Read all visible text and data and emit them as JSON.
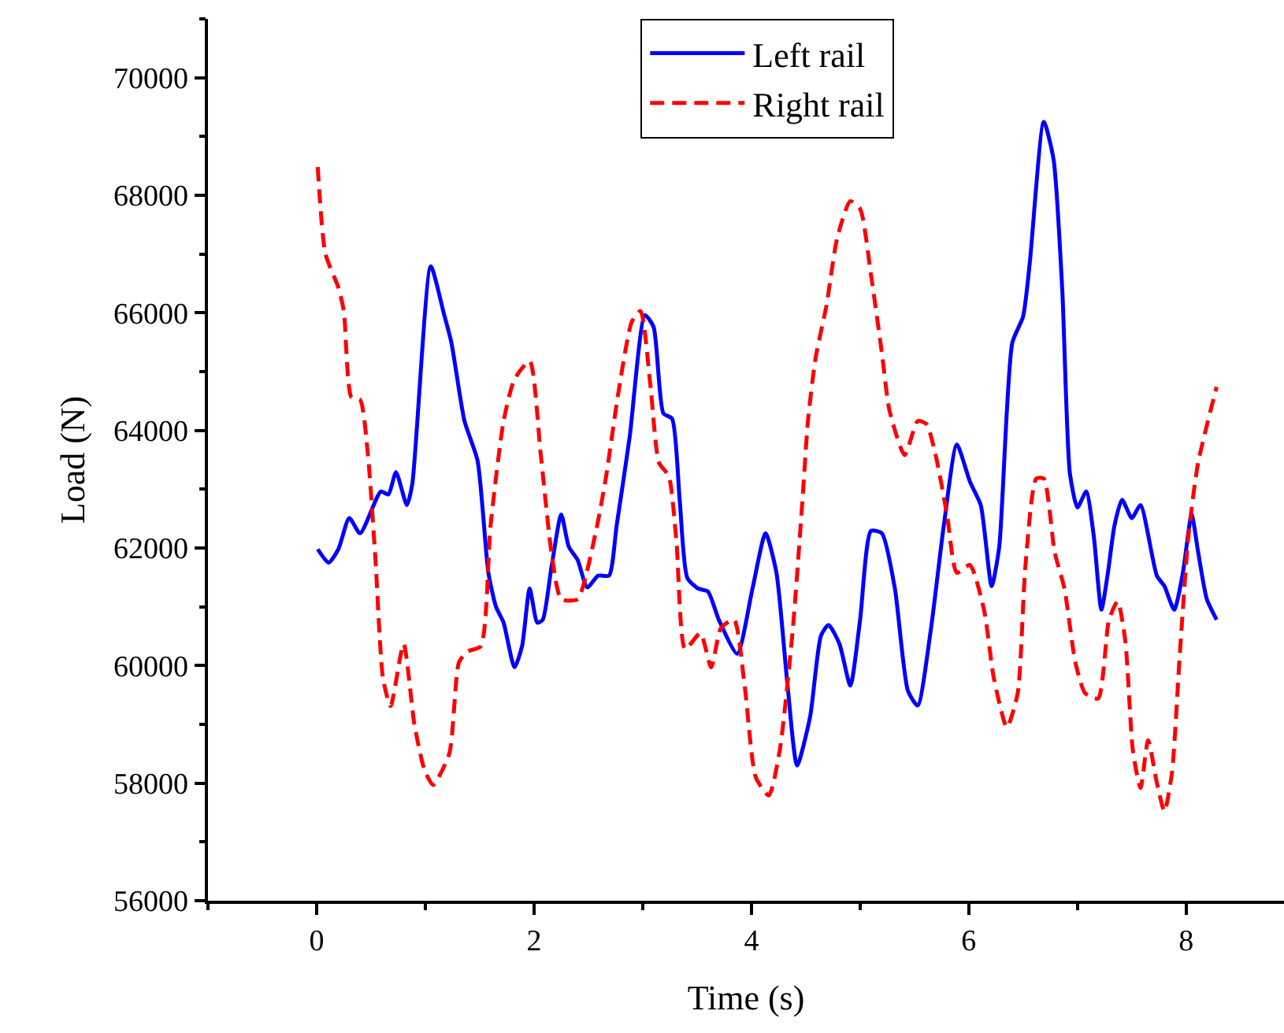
{
  "chart_data": {
    "type": "line",
    "xlabel": "Time (s)",
    "ylabel": "Load (N)",
    "xlim": [
      -1,
      8.9
    ],
    "xticks": [
      0,
      2,
      4,
      6,
      8
    ],
    "ylim": [
      56000,
      71000
    ],
    "yticks": [
      56000,
      58000,
      60000,
      62000,
      64000,
      66000,
      68000,
      70000
    ],
    "legend": "top",
    "marker": "none",
    "series": [
      {
        "name": "Left rail",
        "color": "#0000ff",
        "line_style": "solid",
        "x": [
          0.01,
          0.11,
          0.2,
          0.3,
          0.4,
          0.59,
          0.66,
          0.73,
          0.83,
          0.88,
          1.05,
          1.17,
          1.24,
          1.36,
          1.48,
          1.58,
          1.65,
          1.72,
          1.82,
          1.89,
          1.96,
          2.03,
          2.08,
          2.16,
          2.25,
          2.32,
          2.4,
          2.49,
          2.59,
          2.69,
          2.76,
          2.88,
          3.02,
          3.1,
          3.19,
          3.27,
          3.34,
          3.41,
          3.51,
          3.6,
          3.7,
          3.87,
          4.01,
          4.13,
          4.23,
          4.33,
          4.42,
          4.54,
          4.64,
          4.71,
          4.81,
          4.91,
          5.0,
          5.1,
          5.2,
          5.32,
          5.44,
          5.53,
          5.65,
          5.77,
          5.89,
          6.01,
          6.11,
          6.21,
          6.28,
          6.4,
          6.5,
          6.56,
          6.69,
          6.78,
          6.86,
          6.93,
          7.0,
          7.08,
          7.15,
          7.22,
          7.28,
          7.34,
          7.41,
          7.5,
          7.58,
          7.73,
          7.8,
          7.89,
          7.97,
          8.05,
          8.11,
          8.19,
          8.28
        ],
        "values": [
          61980,
          61750,
          61980,
          62510,
          62250,
          62960,
          62910,
          63290,
          62730,
          63090,
          66790,
          65990,
          65490,
          64160,
          63490,
          61580,
          61000,
          60730,
          59970,
          60330,
          61310,
          60730,
          60780,
          61670,
          62570,
          62020,
          61800,
          61330,
          61530,
          61530,
          62380,
          63890,
          65960,
          65760,
          64290,
          64200,
          62820,
          61490,
          61310,
          61260,
          60780,
          60200,
          61310,
          62250,
          61580,
          59710,
          58300,
          59130,
          60510,
          60690,
          60370,
          59660,
          60780,
          62290,
          62250,
          61310,
          59570,
          59320,
          60600,
          62380,
          63760,
          63130,
          62730,
          61350,
          62020,
          65490,
          65940,
          66830,
          69250,
          68610,
          66390,
          63270,
          62690,
          62960,
          62200,
          60950,
          61580,
          62380,
          62820,
          62510,
          62730,
          61530,
          61350,
          60950,
          61580,
          62570,
          61930,
          61130,
          60780
        ]
      },
      {
        "name": "Right rail",
        "color": "#ff0000",
        "line_style": "dashed",
        "x": [
          0.01,
          0.08,
          0.2,
          0.25,
          0.32,
          0.4,
          0.47,
          0.54,
          0.61,
          0.68,
          0.8,
          0.9,
          0.99,
          1.07,
          1.22,
          1.31,
          1.39,
          1.51,
          1.6,
          1.72,
          1.82,
          1.96,
          2.06,
          2.16,
          2.25,
          2.4,
          2.57,
          2.66,
          2.78,
          2.9,
          2.98,
          3.07,
          3.15,
          3.24,
          3.31,
          3.39,
          3.53,
          3.63,
          3.72,
          3.84,
          3.94,
          4.04,
          4.16,
          4.26,
          4.38,
          4.47,
          4.52,
          4.59,
          4.69,
          4.79,
          4.91,
          5.0,
          5.1,
          5.2,
          5.27,
          5.41,
          5.53,
          5.61,
          5.7,
          5.8,
          5.89,
          6.01,
          6.14,
          6.23,
          6.35,
          6.45,
          6.52,
          6.62,
          6.69,
          6.79,
          6.88,
          6.98,
          7.07,
          7.19,
          7.29,
          7.37,
          7.44,
          7.51,
          7.58,
          7.65,
          7.73,
          7.8,
          7.87,
          7.94,
          8.02,
          8.11,
          8.28
        ],
        "values": [
          68480,
          67010,
          66430,
          66030,
          64560,
          64520,
          63620,
          61840,
          59790,
          59310,
          60370,
          58990,
          58240,
          57970,
          58500,
          60060,
          60240,
          60330,
          62380,
          64160,
          64870,
          65180,
          63620,
          61930,
          61130,
          61130,
          62290,
          63180,
          64690,
          65850,
          66030,
          64780,
          63450,
          63220,
          62110,
          60280,
          60550,
          59970,
          60640,
          60780,
          59620,
          58100,
          57790,
          58550,
          60600,
          62820,
          64160,
          65230,
          66120,
          67280,
          67900,
          67770,
          66650,
          65320,
          64340,
          63580,
          64160,
          64110,
          63540,
          62560,
          61580,
          61710,
          60950,
          59790,
          58950,
          59530,
          61670,
          63180,
          63180,
          61930,
          61310,
          60060,
          59530,
          59440,
          60780,
          61090,
          60420,
          58550,
          57920,
          58730,
          58010,
          57520,
          58190,
          60150,
          62200,
          63450,
          64740
        ]
      }
    ]
  }
}
